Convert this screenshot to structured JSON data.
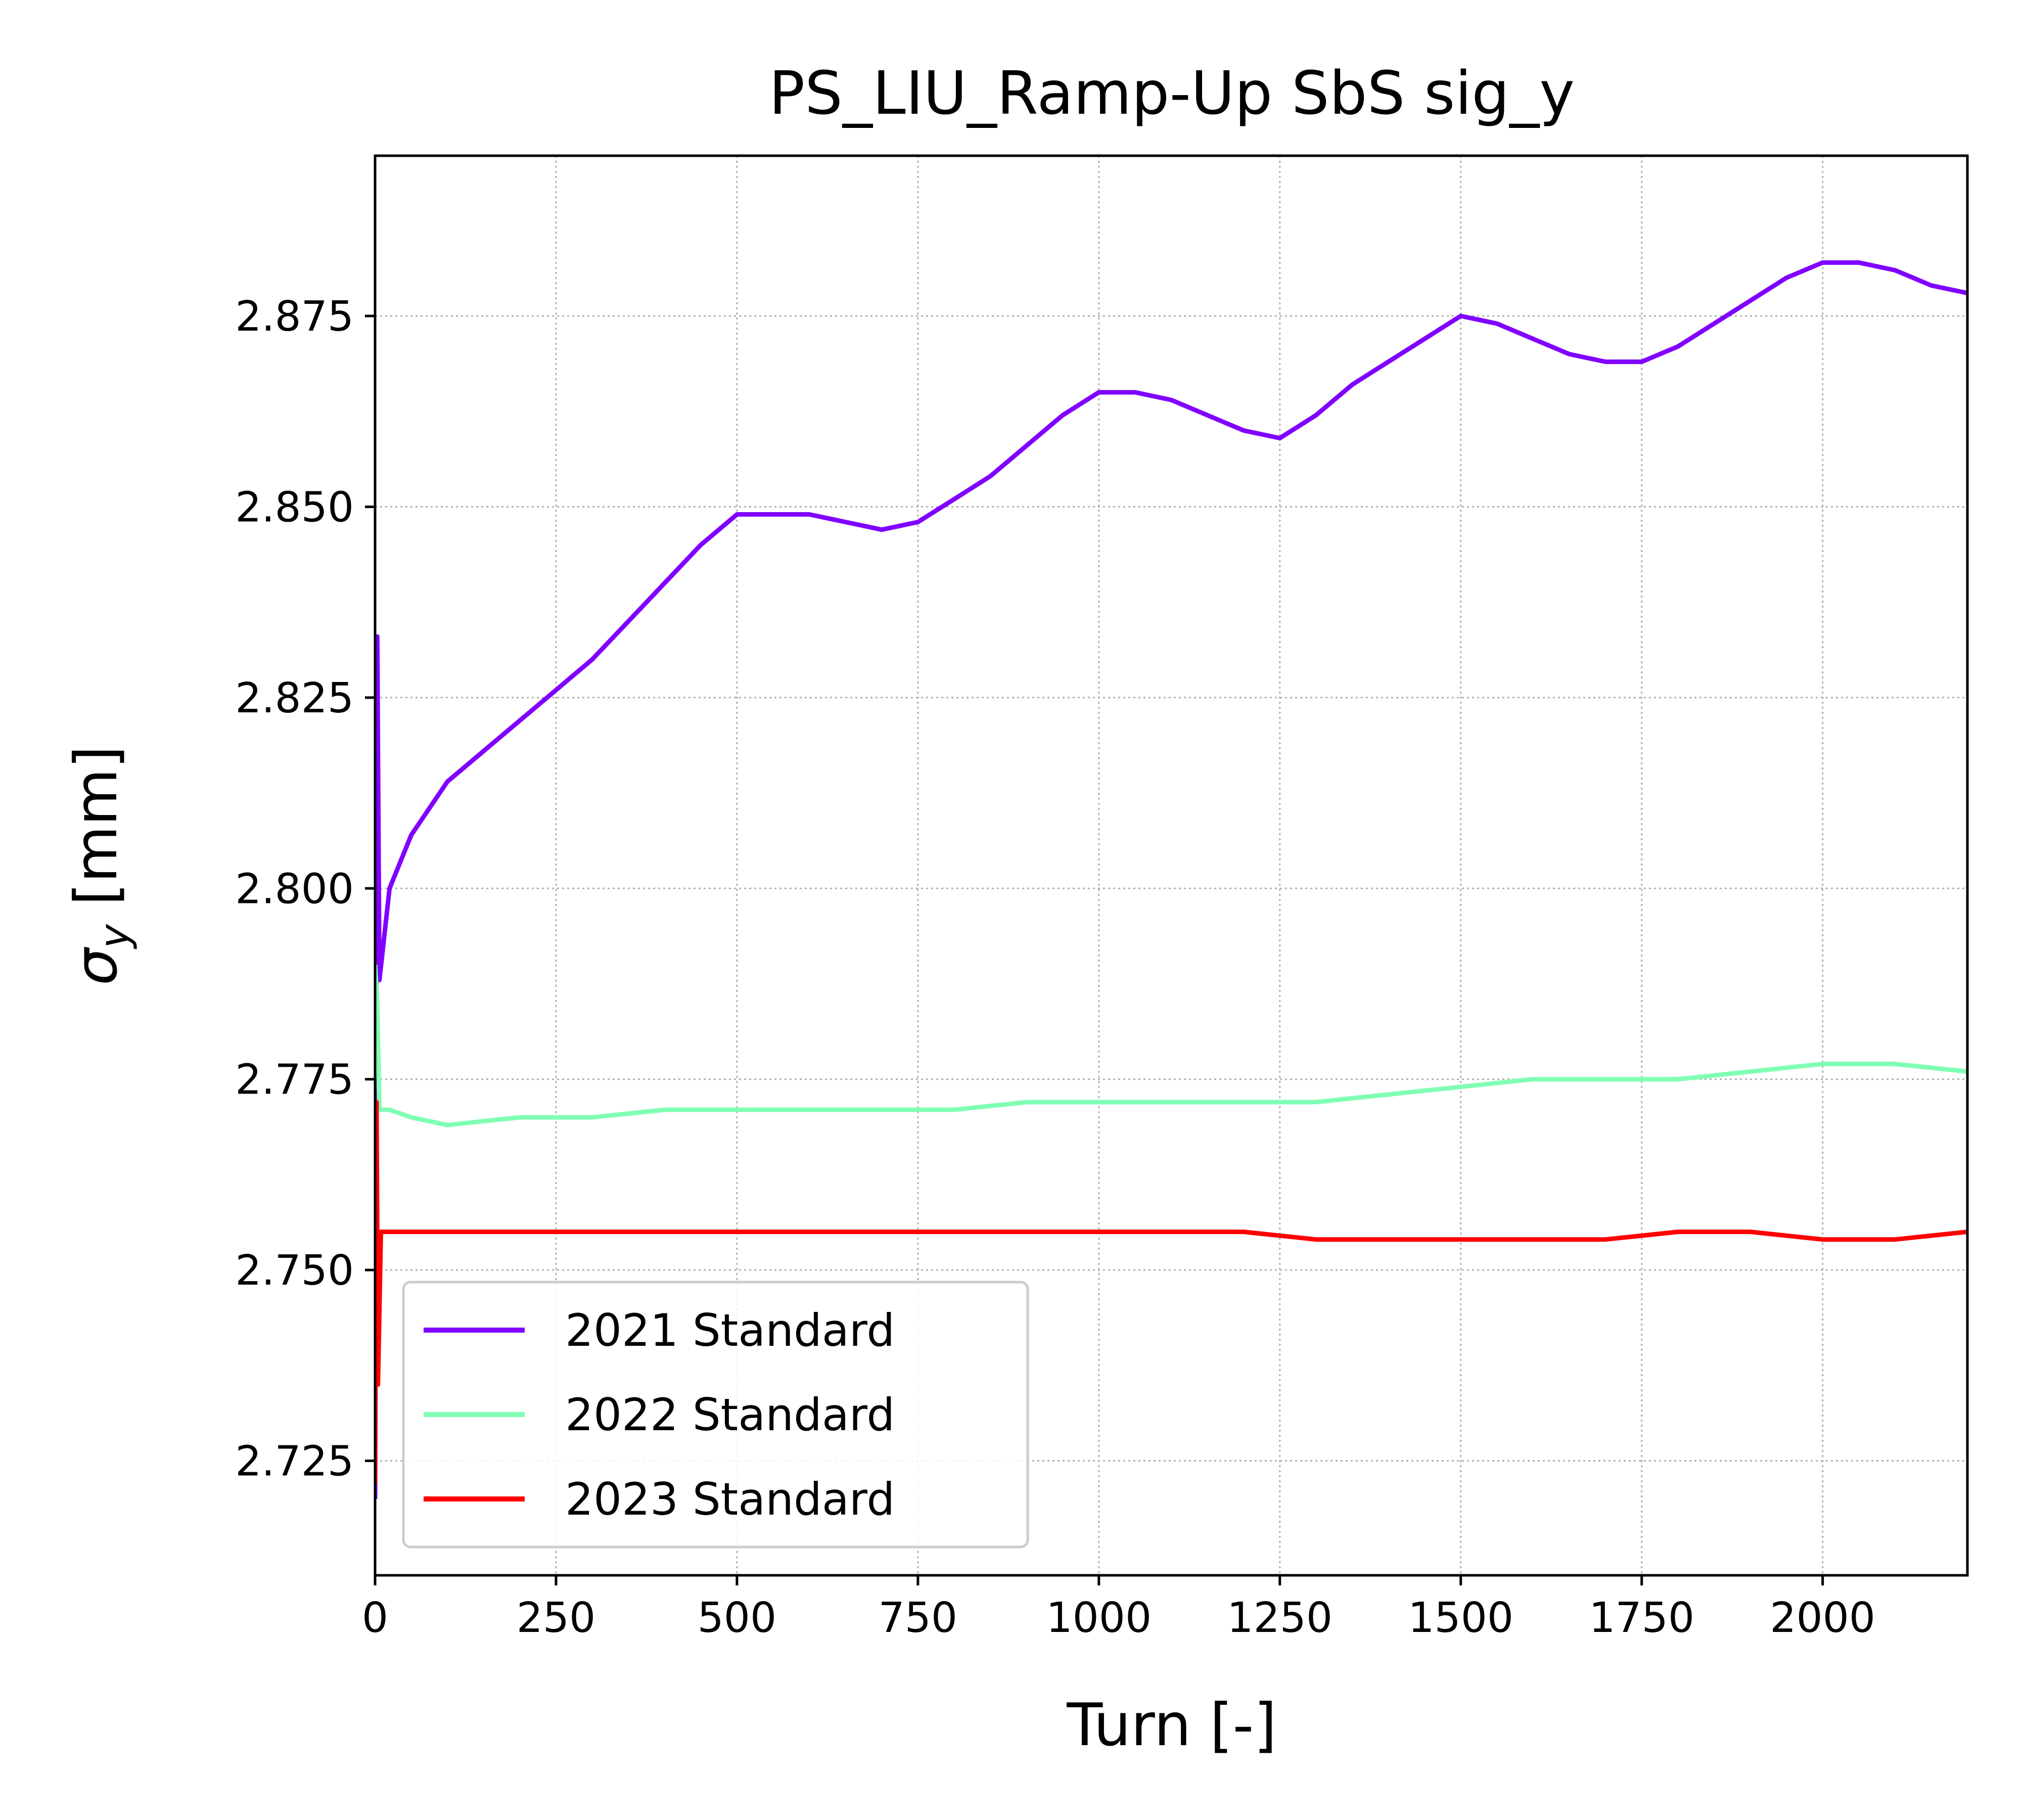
{
  "chart_data": {
    "type": "line",
    "title": "PS_LIU_Ramp-Up SbS sig_y",
    "xlabel": "Turn [-]",
    "ylabel_symbol": "σ",
    "ylabel_subscript": "y",
    "ylabel_unit": " [mm]",
    "xlim": [
      0,
      2200
    ],
    "ylim": [
      2.71,
      2.896
    ],
    "xticks": [
      0,
      250,
      500,
      750,
      1000,
      1250,
      1500,
      1750,
      2000
    ],
    "xtick_labels": [
      "0",
      "250",
      "500",
      "750",
      "1000",
      "1250",
      "1500",
      "1750",
      "2000"
    ],
    "yticks": [
      2.725,
      2.75,
      2.775,
      2.8,
      2.825,
      2.85,
      2.875
    ],
    "ytick_labels": [
      "2.725",
      "2.750",
      "2.775",
      "2.800",
      "2.825",
      "2.850",
      "2.875"
    ],
    "grid": true,
    "legend_position": "lower-left",
    "series": [
      {
        "name": "2021 Standard",
        "color": "#8000ff",
        "x": [
          0,
          3,
          6,
          20,
          50,
          100,
          150,
          200,
          250,
          300,
          350,
          400,
          450,
          500,
          550,
          600,
          650,
          700,
          750,
          800,
          850,
          900,
          950,
          1000,
          1050,
          1100,
          1150,
          1200,
          1250,
          1300,
          1350,
          1400,
          1450,
          1500,
          1550,
          1600,
          1650,
          1700,
          1750,
          1800,
          1850,
          1900,
          1950,
          2000,
          2050,
          2100,
          2150,
          2200
        ],
        "y": [
          2.72,
          2.833,
          2.788,
          2.8,
          2.807,
          2.814,
          2.818,
          2.822,
          2.826,
          2.83,
          2.835,
          2.84,
          2.845,
          2.849,
          2.849,
          2.849,
          2.848,
          2.847,
          2.848,
          2.851,
          2.854,
          2.858,
          2.862,
          2.865,
          2.865,
          2.864,
          2.862,
          2.86,
          2.859,
          2.862,
          2.866,
          2.869,
          2.872,
          2.875,
          2.874,
          2.872,
          2.87,
          2.869,
          2.869,
          2.871,
          2.874,
          2.877,
          2.88,
          2.882,
          2.882,
          2.881,
          2.879,
          2.878
        ]
      },
      {
        "name": "2022 Standard",
        "color": "#80ffb4",
        "x": [
          0,
          3,
          6,
          20,
          50,
          100,
          200,
          300,
          400,
          500,
          600,
          700,
          800,
          900,
          1000,
          1100,
          1200,
          1300,
          1400,
          1500,
          1600,
          1700,
          1800,
          1900,
          2000,
          2100,
          2200
        ],
        "y": [
          2.79,
          2.785,
          2.771,
          2.771,
          2.77,
          2.769,
          2.77,
          2.77,
          2.771,
          2.771,
          2.771,
          2.771,
          2.771,
          2.772,
          2.772,
          2.772,
          2.772,
          2.772,
          2.773,
          2.774,
          2.775,
          2.775,
          2.775,
          2.776,
          2.777,
          2.777,
          2.776
        ]
      },
      {
        "name": "2023 Standard",
        "color": "#ff0000",
        "x": [
          0,
          2,
          4,
          8,
          20,
          100,
          200,
          300,
          400,
          500,
          600,
          700,
          800,
          900,
          1000,
          1100,
          1200,
          1300,
          1400,
          1500,
          1600,
          1700,
          1800,
          1900,
          2000,
          2100,
          2200
        ],
        "y": [
          2.722,
          2.772,
          2.735,
          2.755,
          2.755,
          2.755,
          2.755,
          2.755,
          2.755,
          2.755,
          2.755,
          2.755,
          2.755,
          2.755,
          2.755,
          2.755,
          2.755,
          2.754,
          2.754,
          2.754,
          2.754,
          2.754,
          2.755,
          2.755,
          2.754,
          2.754,
          2.755
        ]
      }
    ]
  }
}
